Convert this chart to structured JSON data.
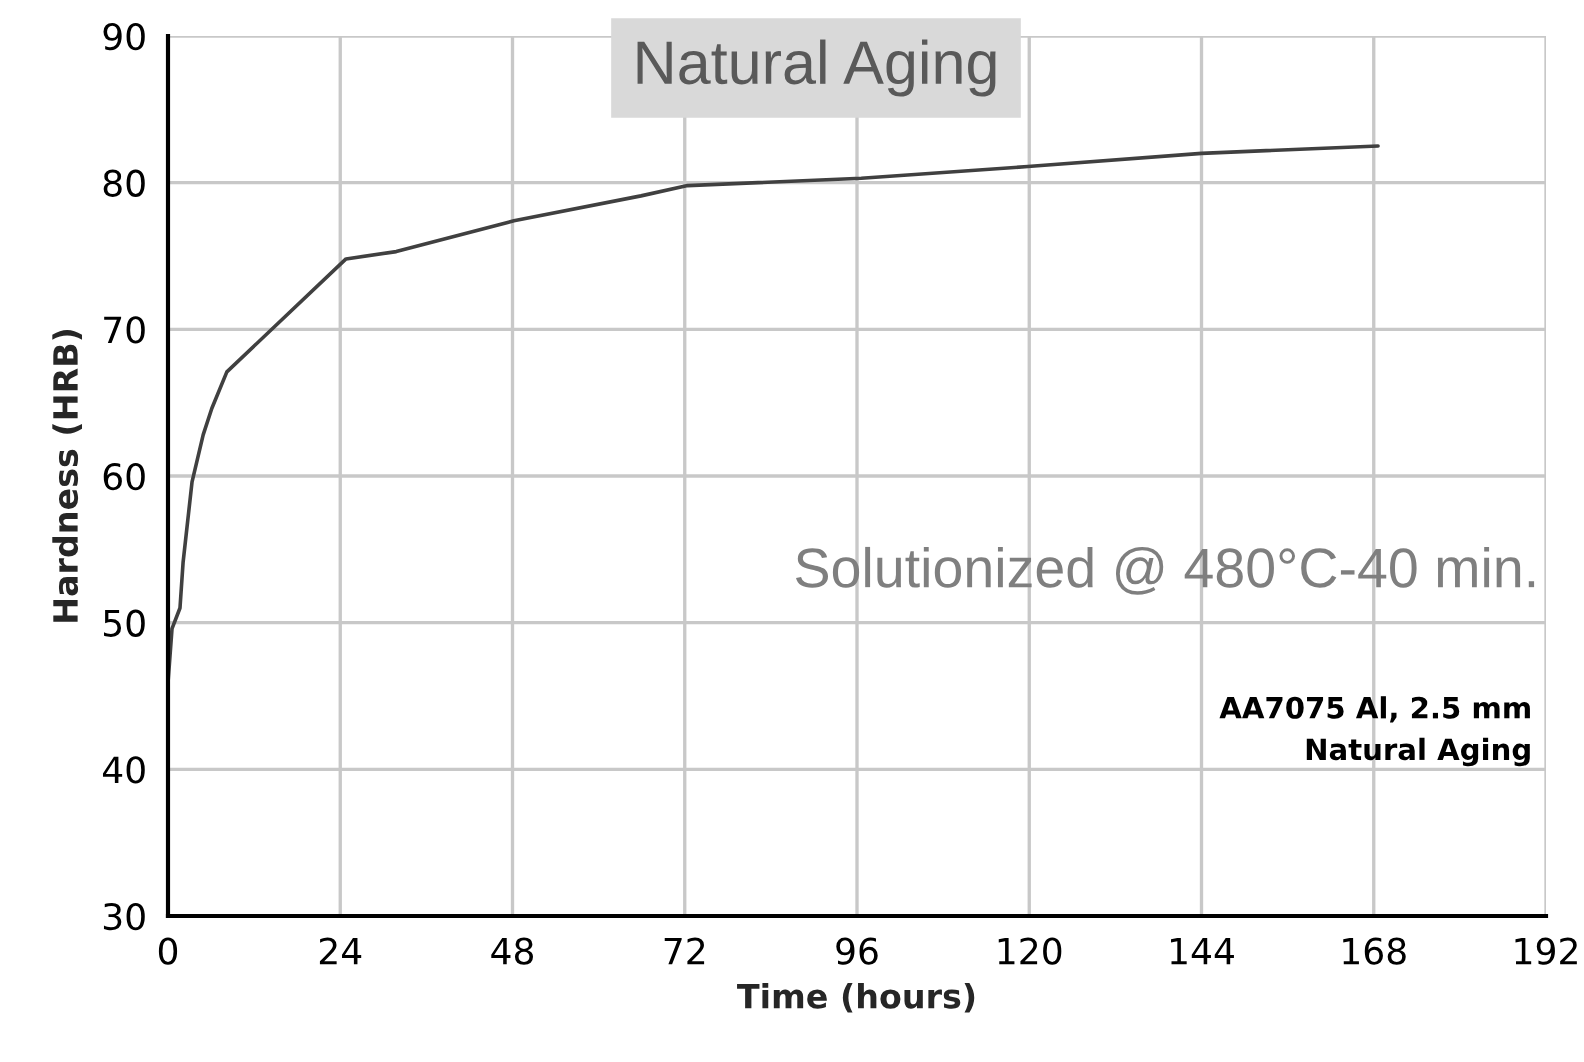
{
  "chart_data": {
    "type": "line",
    "title": "Natural Aging",
    "xlabel": "Time (hours)",
    "ylabel": "Hardness (HRB)",
    "x": [
      0,
      0.56,
      1.67,
      2.1,
      3.35,
      4.9,
      6.1,
      8.2,
      24.8,
      31.8,
      48.2,
      65.9,
      72.4,
      96.6,
      119.8,
      144,
      168.6
    ],
    "series": [
      {
        "color": "#404040",
        "values": [
          45.9,
          49.6,
          51.0,
          54.1,
          59.6,
          62.8,
          64.6,
          67.1,
          74.8,
          75.3,
          77.4,
          79.1,
          79.8,
          80.3,
          81.1,
          82.0,
          82.5
        ]
      }
    ],
    "xlim": [
      0,
      192
    ],
    "xticks": [
      0,
      24,
      48,
      72,
      96,
      120,
      144,
      168,
      192
    ],
    "ylim": [
      30,
      90
    ],
    "yticks": [
      30,
      40,
      50,
      60,
      70,
      80,
      90
    ],
    "grid": true,
    "marker": "none",
    "line_style": "solid",
    "annotations": [
      "Solutionized @ 480°C-40 min.",
      "AA7075 Al, 2.5 mm\nNatural Aging"
    ]
  }
}
